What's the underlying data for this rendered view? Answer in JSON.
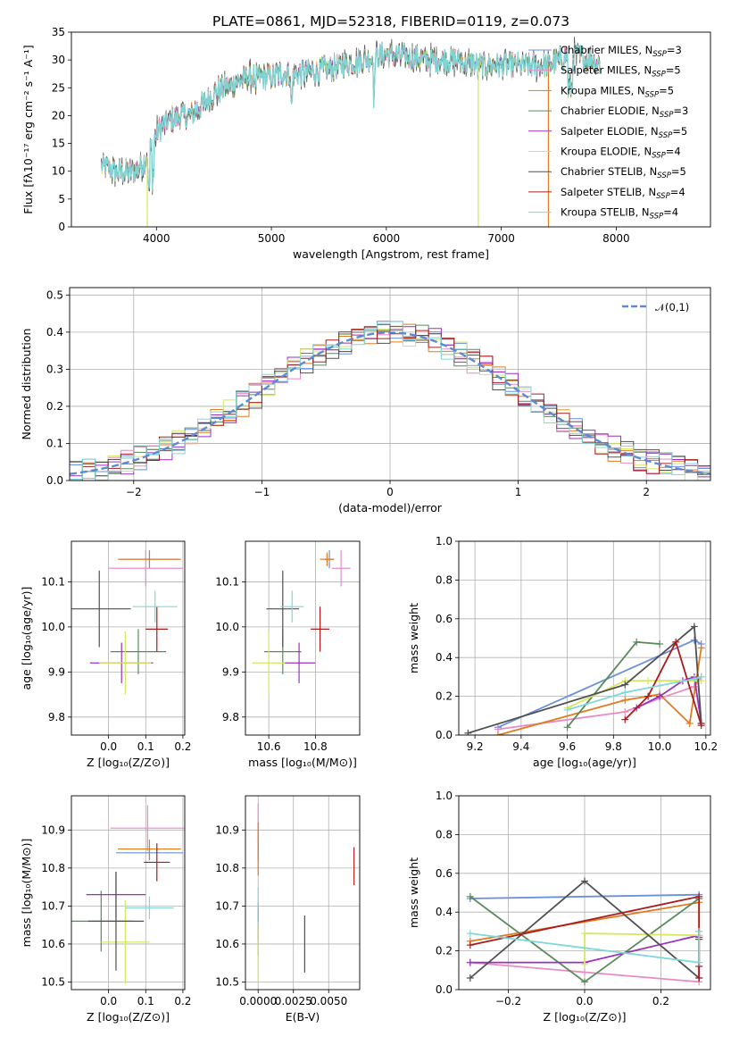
{
  "figure_title": "PLATE=0861, MJD=52318, FIBERID=0119, z=0.073",
  "series_colors": [
    "#6a8fdc",
    "#e88bc4",
    "#e07b20",
    "#5a8a5a",
    "#9b30c0",
    "#d4e860",
    "#505050",
    "#aa1c1c",
    "#80d8d8"
  ],
  "legend": [
    {
      "name": "Chabrier MILES, N",
      "sub": "SSP",
      "val": "=3"
    },
    {
      "name": "Salpeter MILES, N",
      "sub": "SSP",
      "val": "=5"
    },
    {
      "name": "Kroupa MILES, N",
      "sub": "SSP",
      "val": "=5"
    },
    {
      "name": "Chabrier ELODIE, N",
      "sub": "SSP",
      "val": "=3"
    },
    {
      "name": "Salpeter ELODIE, N",
      "sub": "SSP",
      "val": "=5"
    },
    {
      "name": "Kroupa ELODIE, N",
      "sub": "SSP",
      "val": "=4"
    },
    {
      "name": "Chabrier STELIB, N",
      "sub": "SSP",
      "val": "=5"
    },
    {
      "name": "Salpeter STELIB, N",
      "sub": "SSP",
      "val": "=4"
    },
    {
      "name": "Kroupa STELIB, N",
      "sub": "SSP",
      "val": "=4"
    }
  ],
  "chart_data": [
    {
      "id": "spectrum",
      "type": "line",
      "xlabel": "wavelength [Angstrom, rest frame]",
      "ylabel": "Flux [fλ10⁻¹⁷ erg cm⁻² s⁻¹ A⁻¹]",
      "xlim": [
        3260,
        8820
      ],
      "ylim": [
        0,
        35
      ],
      "xticks": [
        4000,
        5000,
        6000,
        7000,
        8000
      ],
      "yticks": [
        0,
        5,
        10,
        15,
        20,
        25,
        30,
        35
      ],
      "grid": false,
      "legend_position": "top-right",
      "continuum": [
        [
          3520,
          11
        ],
        [
          3650,
          10
        ],
        [
          3800,
          10
        ],
        [
          3900,
          12
        ],
        [
          3950,
          14
        ],
        [
          4000,
          17
        ],
        [
          4100,
          19
        ],
        [
          4200,
          20
        ],
        [
          4300,
          20
        ],
        [
          4400,
          22
        ],
        [
          4500,
          24
        ],
        [
          4600,
          25
        ],
        [
          4700,
          26
        ],
        [
          4800,
          27
        ],
        [
          4900,
          27
        ],
        [
          5000,
          27
        ],
        [
          5100,
          27.5
        ],
        [
          5200,
          27.5
        ],
        [
          5400,
          28
        ],
        [
          5600,
          29
        ],
        [
          5800,
          30
        ],
        [
          6000,
          31
        ],
        [
          6200,
          30.5
        ],
        [
          6400,
          30
        ],
        [
          6600,
          30
        ],
        [
          6800,
          29
        ],
        [
          7000,
          29
        ],
        [
          7200,
          29
        ],
        [
          7400,
          29
        ],
        [
          7500,
          30
        ],
        [
          7600,
          31
        ],
        [
          7700,
          30.5
        ],
        [
          7800,
          30
        ],
        [
          7900,
          29
        ],
        [
          8000,
          28
        ],
        [
          8200,
          29
        ],
        [
          8400,
          29
        ],
        [
          8600,
          29
        ],
        [
          8800,
          29
        ]
      ],
      "spikes": [
        {
          "x": 3920,
          "y": 0,
          "series": 5
        },
        {
          "x": 6800,
          "y": 0,
          "series": 5
        },
        {
          "x": 7410,
          "y": 0,
          "series": 2
        }
      ]
    },
    {
      "id": "residuals",
      "type": "step-histogram",
      "xlabel": "(data-model)/error",
      "ylabel": "Normed distribution",
      "xlim": [
        -2.5,
        2.5
      ],
      "ylim": [
        0,
        0.52
      ],
      "xticks": [
        -2,
        -1,
        0,
        1,
        2
      ],
      "yticks": [
        0,
        0.1,
        0.2,
        0.3,
        0.4,
        0.5
      ],
      "grid": true,
      "bin_width": 0.1,
      "reference": {
        "name": "𝒩(0,1)",
        "mean": 0,
        "sigma": 1
      }
    },
    {
      "id": "age_vs_Z",
      "type": "errorbar",
      "xlabel": "Z [log₁₀(Z/Z⊙)]",
      "ylabel": "age  [log₁₀(age/yr)]",
      "xlim": [
        -0.1,
        0.205
      ],
      "ylim": [
        9.76,
        10.19
      ],
      "xticks": [
        0,
        0.1,
        0.2
      ],
      "yticks": [
        9.8,
        9.9,
        10.0,
        10.1
      ],
      "grid": true,
      "points": [
        {
          "s": 0,
          "x": 0.11,
          "y": 10.15,
          "xerr": 0.08,
          "yerr": 0.02
        },
        {
          "s": 1,
          "x": 0.1,
          "y": 10.13,
          "xerr": 0.1,
          "yerr": 0.04
        },
        {
          "s": 2,
          "x": 0.11,
          "y": 10.15,
          "xerr": 0.085,
          "yerr": 0.015
        },
        {
          "s": 3,
          "x": 0.08,
          "y": 9.945,
          "xerr": 0.075,
          "yerr": 0.05
        },
        {
          "s": 4,
          "x": 0.035,
          "y": 9.92,
          "xerr": 0.085,
          "yerr": 0.045
        },
        {
          "s": 5,
          "x": 0.045,
          "y": 9.92,
          "xerr": 0.07,
          "yerr": 0.07
        },
        {
          "s": 6,
          "x": -0.025,
          "y": 10.04,
          "xerr": 0.085,
          "yerr": 0.085
        },
        {
          "s": 7,
          "x": 0.13,
          "y": 9.995,
          "xerr": 0.03,
          "yerr": 0.05
        },
        {
          "s": 8,
          "x": 0.125,
          "y": 10.045,
          "xerr": 0.06,
          "yerr": 0.035
        }
      ]
    },
    {
      "id": "age_vs_mass",
      "type": "errorbar",
      "xlabel": "mass [log₁₀(M/M⊙)]",
      "ylabel": "",
      "xlim": [
        10.5,
        10.99
      ],
      "ylim": [
        9.76,
        10.19
      ],
      "xticks": [
        10.6,
        10.8
      ],
      "yticks": [
        9.8,
        9.9,
        10.0,
        10.1
      ],
      "grid": true,
      "points": [
        {
          "s": 0,
          "x": 10.86,
          "y": 10.15,
          "xerr": 0.02,
          "yerr": 0.02
        },
        {
          "s": 1,
          "x": 10.91,
          "y": 10.13,
          "xerr": 0.04,
          "yerr": 0.04
        },
        {
          "s": 2,
          "x": 10.85,
          "y": 10.15,
          "xerr": 0.03,
          "yerr": 0.015
        },
        {
          "s": 3,
          "x": 10.66,
          "y": 9.945,
          "xerr": 0.08,
          "yerr": 0.05
        },
        {
          "s": 4,
          "x": 10.73,
          "y": 9.92,
          "xerr": 0.07,
          "yerr": 0.045
        },
        {
          "s": 5,
          "x": 10.6,
          "y": 9.92,
          "xerr": 0.07,
          "yerr": 0.07
        },
        {
          "s": 6,
          "x": 10.66,
          "y": 10.04,
          "xerr": 0.07,
          "yerr": 0.085
        },
        {
          "s": 7,
          "x": 10.82,
          "y": 9.995,
          "xerr": 0.04,
          "yerr": 0.05
        },
        {
          "s": 8,
          "x": 10.7,
          "y": 10.045,
          "xerr": 0.05,
          "yerr": 0.035
        }
      ]
    },
    {
      "id": "mw_vs_age",
      "type": "line",
      "xlabel": "age  [log₁₀(age/yr)]",
      "ylabel": "mass weight",
      "xlim": [
        9.13,
        10.22
      ],
      "ylim": [
        0,
        1
      ],
      "xticks": [
        9.2,
        9.4,
        9.6,
        9.8,
        10.0,
        10.2
      ],
      "yticks": [
        0,
        0.2,
        0.4,
        0.6,
        0.8,
        1.0
      ],
      "grid": true,
      "series": [
        {
          "s": 0,
          "pts": [
            [
              9.3,
              0.04
            ],
            [
              10.15,
              0.49
            ],
            [
              10.18,
              0.47
            ]
          ]
        },
        {
          "s": 1,
          "pts": [
            [
              9.3,
              0.03
            ],
            [
              9.85,
              0.12
            ],
            [
              10.0,
              0.19
            ],
            [
              10.15,
              0.25
            ],
            [
              10.18,
              0.3
            ]
          ]
        },
        {
          "s": 2,
          "pts": [
            [
              9.3,
              0.0
            ],
            [
              9.85,
              0.18
            ],
            [
              10.0,
              0.21
            ],
            [
              10.13,
              0.06
            ],
            [
              10.18,
              0.45
            ]
          ]
        },
        {
          "s": 3,
          "pts": [
            [
              9.6,
              0.04
            ],
            [
              9.9,
              0.48
            ],
            [
              10.0,
              0.47
            ]
          ]
        },
        {
          "s": 4,
          "pts": [
            [
              9.9,
              0.14
            ],
            [
              10.0,
              0.2
            ],
            [
              10.1,
              0.28
            ],
            [
              10.15,
              0.3
            ],
            [
              10.18,
              0.06
            ]
          ]
        },
        {
          "s": 5,
          "pts": [
            [
              9.6,
              0.14
            ],
            [
              9.85,
              0.28
            ],
            [
              9.95,
              0.28
            ],
            [
              10.18,
              0.28
            ]
          ]
        },
        {
          "s": 6,
          "pts": [
            [
              9.17,
              0.01
            ],
            [
              9.85,
              0.26
            ],
            [
              10.15,
              0.56
            ],
            [
              10.18,
              0.06
            ]
          ]
        },
        {
          "s": 7,
          "pts": [
            [
              9.85,
              0.08
            ],
            [
              9.95,
              0.2
            ],
            [
              10.07,
              0.48
            ],
            [
              10.18,
              0.05
            ]
          ]
        },
        {
          "s": 8,
          "pts": [
            [
              9.6,
              0.13
            ],
            [
              9.85,
              0.22
            ],
            [
              10.15,
              0.29
            ],
            [
              10.18,
              0.3
            ]
          ]
        }
      ]
    },
    {
      "id": "mass_vs_Z",
      "type": "errorbar",
      "xlabel": "Z [log₁₀(Z/Z⊙)]",
      "ylabel": "mass [log₁₀(M/M⊙)]",
      "xlim": [
        -0.1,
        0.205
      ],
      "ylim": [
        10.48,
        10.99
      ],
      "xticks": [
        0,
        0.1,
        0.2
      ],
      "yticks": [
        10.5,
        10.6,
        10.7,
        10.8,
        10.9
      ],
      "grid": true,
      "points": [
        {
          "s": 0,
          "x": 0.11,
          "y": 10.84,
          "xerr": 0.09,
          "yerr": 0.02
        },
        {
          "s": 1,
          "x": 0.105,
          "y": 10.905,
          "xerr": 0.1,
          "yerr": 0.06
        },
        {
          "s": 2,
          "x": 0.11,
          "y": 10.85,
          "xerr": 0.085,
          "yerr": 0.025
        },
        {
          "s": 3,
          "x": -0.02,
          "y": 10.66,
          "xerr": 0.085,
          "yerr": 0.08
        },
        {
          "s": 4,
          "x": 0.02,
          "y": 10.73,
          "xerr": 0.08,
          "yerr": 0.06
        },
        {
          "s": 5,
          "x": 0.045,
          "y": 10.605,
          "xerr": 0.065,
          "yerr": 0.11
        },
        {
          "s": 6,
          "x": 0.02,
          "y": 10.66,
          "xerr": 0.075,
          "yerr": 0.13
        },
        {
          "s": 7,
          "x": 0.13,
          "y": 10.815,
          "xerr": 0.035,
          "yerr": 0.05
        },
        {
          "s": 8,
          "x": 0.11,
          "y": 10.695,
          "xerr": 0.065,
          "yerr": 0.03
        }
      ]
    },
    {
      "id": "mass_vs_EBV",
      "type": "errorbar",
      "xlabel": "E(B-V)",
      "ylabel": "",
      "xlim": [
        -0.0009,
        0.0072
      ],
      "ylim": [
        10.48,
        10.99
      ],
      "xticks": [
        0,
        0.0025,
        0.005
      ],
      "yticks": [
        10.5,
        10.6,
        10.7,
        10.8,
        10.9
      ],
      "grid": true,
      "points": [
        {
          "s": 0,
          "x": 0.0,
          "y": 10.86,
          "xerr": 0,
          "yerr": 0.04
        },
        {
          "s": 1,
          "x": 0.0,
          "y": 10.91,
          "xerr": 0,
          "yerr": 0.06
        },
        {
          "s": 2,
          "x": 0.0,
          "y": 10.85,
          "xerr": 0,
          "yerr": 0.07
        },
        {
          "s": 3,
          "x": 0.0,
          "y": 10.63,
          "xerr": 0,
          "yerr": 0.06
        },
        {
          "s": 4,
          "x": 0.0,
          "y": 10.66,
          "xerr": 0,
          "yerr": 0.05
        },
        {
          "s": 5,
          "x": 0.0,
          "y": 10.58,
          "xerr": 0,
          "yerr": 0.08
        },
        {
          "s": 6,
          "x": 0.0033,
          "y": 10.6,
          "xerr": 0,
          "yerr": 0.075
        },
        {
          "s": 7,
          "x": 0.0068,
          "y": 10.805,
          "xerr": 0,
          "yerr": 0.05
        },
        {
          "s": 8,
          "x": 0.0,
          "y": 10.7,
          "xerr": 0,
          "yerr": 0.05
        }
      ]
    },
    {
      "id": "mw_vs_Z",
      "type": "line",
      "xlabel": "Z [log₁₀(Z/Z⊙)]",
      "ylabel": "mass weight",
      "xlim": [
        -0.33,
        0.33
      ],
      "ylim": [
        0,
        1
      ],
      "xticks": [
        -0.2,
        0.0,
        0.2
      ],
      "yticks": [
        0,
        0.2,
        0.4,
        0.6,
        0.8,
        1.0
      ],
      "grid": true,
      "series": [
        {
          "s": 0,
          "pts": [
            [
              -0.3,
              0.47
            ],
            [
              0.3,
              0.49
            ],
            [
              0.3,
              0.47
            ]
          ]
        },
        {
          "s": 1,
          "pts": [
            [
              -0.3,
              0.14
            ],
            [
              0.0,
              0.09
            ],
            [
              0.3,
              0.04
            ],
            [
              0.3,
              0.3
            ]
          ]
        },
        {
          "s": 2,
          "pts": [
            [
              -0.3,
              0.25
            ],
            [
              0.3,
              0.45
            ],
            [
              0.3,
              0.26
            ]
          ]
        },
        {
          "s": 3,
          "pts": [
            [
              -0.3,
              0.48
            ],
            [
              0.0,
              0.04
            ],
            [
              0.3,
              0.47
            ]
          ]
        },
        {
          "s": 4,
          "pts": [
            [
              -0.3,
              0.14
            ],
            [
              0.0,
              0.14
            ],
            [
              0.3,
              0.28
            ],
            [
              0.3,
              0.27
            ]
          ]
        },
        {
          "s": 5,
          "pts": [
            [
              0.0,
              0.13
            ],
            [
              0.0,
              0.29
            ],
            [
              0.3,
              0.28
            ]
          ]
        },
        {
          "s": 6,
          "pts": [
            [
              -0.3,
              0.06
            ],
            [
              0.0,
              0.56
            ],
            [
              0.3,
              0.06
            ],
            [
              0.3,
              0.26
            ]
          ]
        },
        {
          "s": 7,
          "pts": [
            [
              -0.3,
              0.23
            ],
            [
              0.3,
              0.48
            ],
            [
              0.3,
              0.06
            ],
            [
              0.3,
              0.12
            ]
          ]
        },
        {
          "s": 8,
          "pts": [
            [
              -0.3,
              0.29
            ],
            [
              0.3,
              0.14
            ],
            [
              0.3,
              0.3
            ]
          ]
        }
      ]
    }
  ]
}
